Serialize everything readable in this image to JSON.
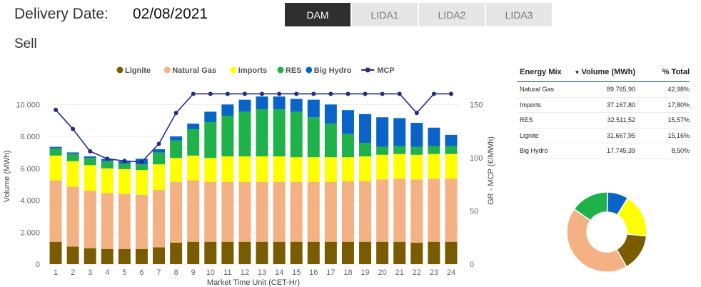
{
  "header": {
    "label": "Delivery Date:",
    "date": "02/08/2021",
    "subtitle": "Sell"
  },
  "tabs": [
    {
      "label": "DAM",
      "active": true
    },
    {
      "label": "LIDA1",
      "active": false
    },
    {
      "label": "LIDA2",
      "active": false
    },
    {
      "label": "LIDA3",
      "active": false
    }
  ],
  "energy_table": {
    "headers": [
      "Energy Mix",
      "Volume (MWh)",
      "% Total"
    ],
    "rows": [
      {
        "name": "Natural Gas",
        "volume": "89.765,90",
        "pct": "42,98%"
      },
      {
        "name": "Imports",
        "volume": "37.167,80",
        "pct": "17,80%"
      },
      {
        "name": "RES",
        "volume": "32.511,52",
        "pct": "15,57%"
      },
      {
        "name": "Lignite",
        "volume": "31.667,95",
        "pct": "15,16%"
      },
      {
        "name": "Big Hydro",
        "volume": "17.745,39",
        "pct": "8,50%"
      }
    ]
  },
  "chart_data": [
    {
      "type": "bar",
      "stacked": true,
      "xlabel": "Market Time Unit (CET-Hr)",
      "ylabel": "Volume (MWh)",
      "y2label": "GR - MCP (€/MWh)",
      "ylim": [
        0,
        11000
      ],
      "y2lim": [
        0,
        165
      ],
      "yticks": [
        0,
        2000,
        4000,
        6000,
        8000,
        10000
      ],
      "ytick_labels": [
        "0",
        "2.000",
        "4.000",
        "6.000",
        "8.000",
        "10.000"
      ],
      "y2ticks": [
        0,
        50,
        100,
        150
      ],
      "legend_position": "top",
      "categories": [
        "1",
        "2",
        "3",
        "4",
        "5",
        "6",
        "7",
        "8",
        "9",
        "10",
        "11",
        "12",
        "13",
        "14",
        "15",
        "16",
        "17",
        "18",
        "19",
        "20",
        "21",
        "22",
        "23",
        "24"
      ],
      "series": [
        {
          "name": "Lignite",
          "color": "#7a5c00",
          "values": [
            1400,
            1100,
            1000,
            950,
            950,
            950,
            1050,
            1350,
            1400,
            1400,
            1400,
            1400,
            1400,
            1400,
            1400,
            1400,
            1400,
            1400,
            1400,
            1400,
            1400,
            1350,
            1400,
            1400
          ]
        },
        {
          "name": "Natural Gas",
          "color": "#f4b183",
          "values": [
            3850,
            3750,
            3600,
            3500,
            3450,
            3400,
            3600,
            3800,
            3850,
            3750,
            3750,
            3750,
            3750,
            3750,
            3750,
            3750,
            3750,
            3800,
            3800,
            3900,
            3950,
            3950,
            3950,
            3950
          ]
        },
        {
          "name": "Imports",
          "color": "#ffff00",
          "values": [
            1550,
            1600,
            1600,
            1550,
            1550,
            1550,
            1600,
            1500,
            1550,
            1500,
            1600,
            1600,
            1600,
            1600,
            1550,
            1550,
            1550,
            1500,
            1550,
            1550,
            1550,
            1550,
            1550,
            1550
          ]
        },
        {
          "name": "RES",
          "color": "#1fb14a",
          "values": [
            450,
            450,
            450,
            450,
            350,
            350,
            750,
            1100,
            1650,
            2250,
            2550,
            2800,
            2950,
            2950,
            2850,
            2500,
            2100,
            1450,
            850,
            500,
            500,
            500,
            500,
            500
          ]
        },
        {
          "name": "Big Hydro",
          "color": "#0a64c8",
          "values": [
            100,
            100,
            100,
            150,
            150,
            350,
            200,
            250,
            350,
            650,
            700,
            750,
            800,
            800,
            800,
            1100,
            1200,
            1500,
            1800,
            1850,
            1750,
            1500,
            1150,
            700
          ]
        }
      ],
      "line": {
        "name": "MCP",
        "color": "#1f2d8a",
        "values": [
          145,
          127,
          106,
          99,
          97,
          96,
          113,
          142,
          160,
          160,
          160,
          160,
          160,
          160,
          160,
          160,
          160,
          160,
          160,
          160,
          160,
          142,
          160,
          160
        ]
      }
    },
    {
      "type": "pie",
      "donut": true,
      "labels": [
        "Natural Gas",
        "Imports",
        "RES",
        "Lignite",
        "Big Hydro"
      ],
      "values": [
        42.98,
        17.8,
        15.57,
        15.16,
        8.5
      ],
      "colors": [
        "#f4b183",
        "#ffff00",
        "#1fb14a",
        "#7a5c00",
        "#0a64c8"
      ]
    }
  ]
}
